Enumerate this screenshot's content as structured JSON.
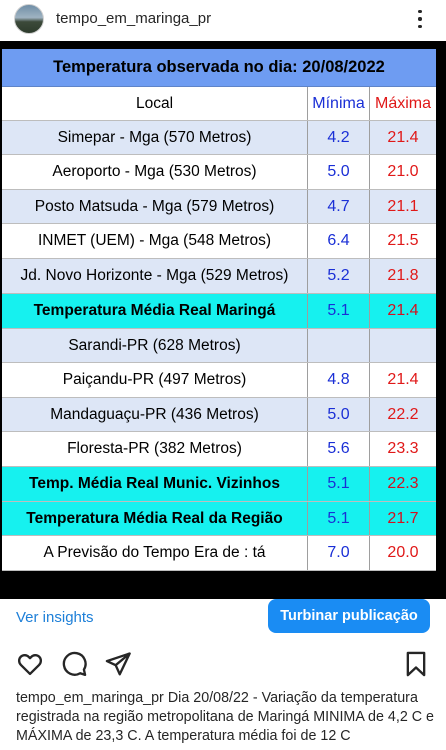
{
  "post": {
    "username": "tempo_em_maringa_pr",
    "insights_label": "Ver insights",
    "boost_label": "Turbinar publicação",
    "caption_user": "tempo_em_maringa_pr",
    "caption_text": "Dia 20/08/22 - Variação da temperatura registrada na região metropolitana de Maringá MINIMA de 4,2 C e MÁXIMA de 23,3 C. A temperatura média foi de 12 C"
  },
  "table": {
    "title": "Temperatura observada no dia: 20/08/2022",
    "headers": {
      "local": "Local",
      "min": "Mínima",
      "max": "Máxima"
    },
    "colors": {
      "title_bg": "#6e9cf2",
      "row_blue": "#dde6f6",
      "row_cyan": "#16f1ef",
      "min_text": "#1a2fd6",
      "max_text": "#e01818"
    },
    "rows": [
      {
        "local": "Simepar - Mga  (570 Metros)",
        "min": "4.2",
        "max": "21.4",
        "style": "blue"
      },
      {
        "local": "Aeroporto - Mga (530 Metros)",
        "min": "5.0",
        "max": "21.0",
        "style": "white"
      },
      {
        "local": "Posto Matsuda - Mga (579 Metros)",
        "min": "4.7",
        "max": "21.1",
        "style": "blue"
      },
      {
        "local": "INMET (UEM) - Mga  (548 Metros)",
        "min": "6.4",
        "max": "21.5",
        "style": "white"
      },
      {
        "local": "Jd. Novo Horizonte - Mga (529 Metros)",
        "min": "5.2",
        "max": "21.8",
        "style": "blue"
      },
      {
        "local": "Temperatura Média Real Maringá",
        "min": "5.1",
        "max": "21.4",
        "style": "cyan"
      },
      {
        "local": "Sarandi-PR  (628 Metros)",
        "min": "",
        "max": "",
        "style": "blue"
      },
      {
        "local": "Paiçandu-PR (497 Metros)",
        "min": "4.8",
        "max": "21.4",
        "style": "white"
      },
      {
        "local": "Mandaguaçu-PR (436 Metros)",
        "min": "5.0",
        "max": "22.2",
        "style": "blue"
      },
      {
        "local": "Floresta-PR (382 Metros)",
        "min": "5.6",
        "max": "23.3",
        "style": "white"
      },
      {
        "local": "Temp. Média Real Munic. Vizinhos",
        "min": "5.1",
        "max": "22.3",
        "style": "cyan"
      },
      {
        "local": "Temperatura Média Real da Região",
        "min": "5.1",
        "max": "21.7",
        "style": "cyan"
      },
      {
        "local": "A Previsão do Tempo Era de : tá",
        "min": "7.0",
        "max": "20.0",
        "style": "white"
      }
    ]
  },
  "icons": {
    "more": "more-vertical-icon",
    "like": "heart-icon",
    "comment": "comment-icon",
    "share": "send-icon",
    "save": "bookmark-icon"
  }
}
